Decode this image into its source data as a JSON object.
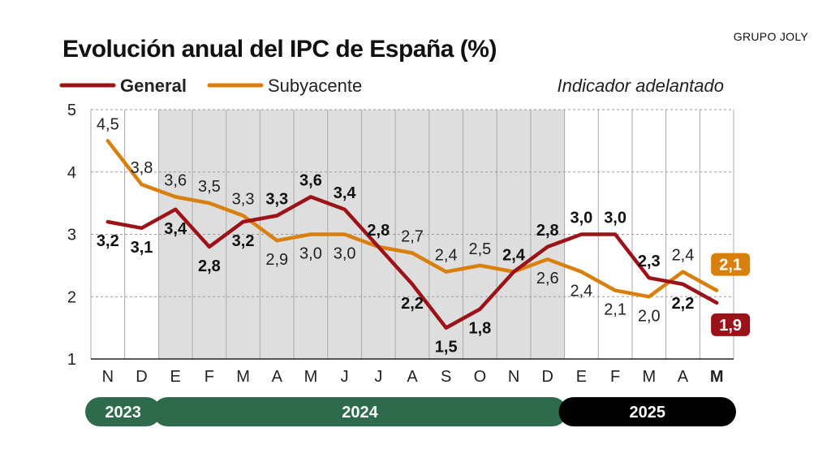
{
  "header": {
    "title": "Evolución anual del IPC de España (%)",
    "brand": "GRUPO JOLY",
    "note": "Indicador adelantado"
  },
  "colors": {
    "general": "#9b1318",
    "subyacente": "#d9800c",
    "shade": "#dedede",
    "year_2023": "#2e6b4c",
    "year_2024": "#2e6b4c",
    "year_2025": "#000000"
  },
  "chart_data": {
    "type": "line",
    "title": "Evolución anual del IPC de España (%)",
    "categories": [
      "N",
      "D",
      "E",
      "F",
      "M",
      "A",
      "M",
      "J",
      "J",
      "A",
      "S",
      "O",
      "N",
      "D",
      "E",
      "F",
      "M",
      "A",
      "M"
    ],
    "highlight_last_category": true,
    "ylim": [
      1,
      5
    ],
    "yticks": [
      1,
      2,
      3,
      4,
      5
    ],
    "grid": true,
    "legend": "top-left",
    "shaded_period": "2024",
    "years": [
      {
        "label": "2023",
        "from": 0,
        "to": 1
      },
      {
        "label": "2024",
        "from": 2,
        "to": 13
      },
      {
        "label": "2025",
        "from": 14,
        "to": 18
      }
    ],
    "series": [
      {
        "name": "General",
        "values": [
          3.2,
          3.1,
          3.4,
          2.8,
          3.2,
          3.3,
          3.6,
          3.4,
          2.8,
          2.2,
          1.5,
          1.8,
          2.4,
          2.8,
          3.0,
          3.0,
          2.3,
          2.2,
          1.9
        ],
        "labels": [
          "3,2",
          "3,1",
          "3,4",
          "2,8",
          "3,2",
          "3,3",
          "3,6",
          "3,4",
          "2,8",
          "2,2",
          "1,5",
          "1,8",
          "2,4",
          "2,8",
          "3,0",
          "3,0",
          "2,3",
          "2,2",
          "1,9"
        ]
      },
      {
        "name": "Subyacente",
        "values": [
          4.5,
          3.8,
          3.6,
          3.5,
          3.3,
          2.9,
          3.0,
          3.0,
          2.8,
          2.7,
          2.4,
          2.5,
          2.4,
          2.6,
          2.4,
          2.1,
          2.0,
          2.4,
          2.1
        ],
        "labels": [
          "4,5",
          "3,8",
          "3,6",
          "3,5",
          "3,3",
          "2,9",
          "3,0",
          "3,0",
          "",
          "2,7",
          "2,4",
          "2,5",
          "",
          "2,6",
          "2,4",
          "2,1",
          "2,0",
          "2,4",
          "2,1"
        ]
      }
    ]
  }
}
